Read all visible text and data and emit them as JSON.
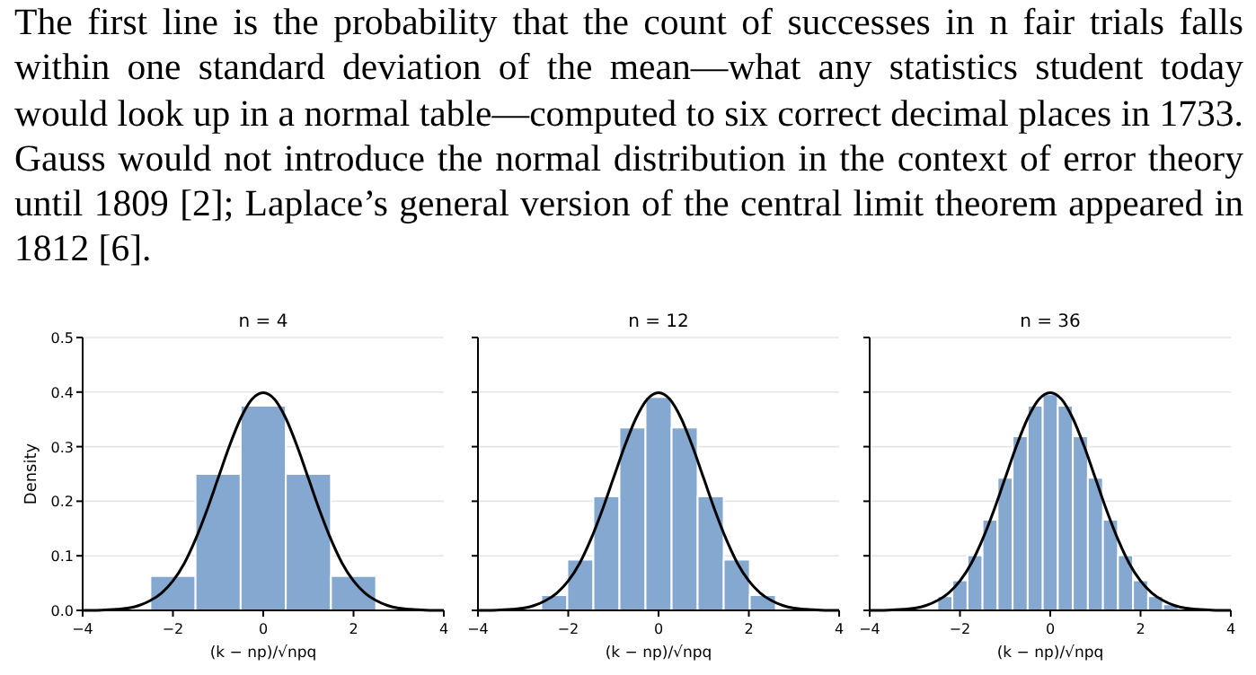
{
  "chart_data": [
    {
      "type": "histogram",
      "title": "n = 4",
      "xlabel": "(k − np)/√npq",
      "ylabel": "Density",
      "annotations": [
        "The first line is the probability that the count of successes in n fair trials falls within one standard deviation of the mean—what any statistics student today would look up in a normal table—computed to six correct decimal places in 1733. Gauss would not introduce the normal distribution in the context of error theory until 1809 [2]; Laplace’s general version of the central limit theorem appeared in 1812 [6]."
      ],
      "bins": [
        -2.5,
        -1.5,
        -0.5,
        0.5,
        1.5,
        2.5
      ],
      "values": [
        0.063,
        0.25,
        0.375,
        0.25,
        0.063
      ],
      "color": "#84a8cf",
      "series": [
        {
          "type": "line",
          "color": "#000000",
          "x": [
            -4,
            -3.75,
            -3.5,
            -3.25,
            -3,
            -2.75,
            -2.5,
            -2.25,
            -2,
            -1.75,
            -1.5,
            -1.25,
            -1,
            -0.75,
            -0.5,
            -0.25,
            0,
            0.25,
            0.5,
            0.75,
            1,
            1.25,
            1.5,
            1.75,
            2,
            2.25,
            2.5,
            2.75,
            3,
            3.25,
            3.5,
            3.75,
            4
          ],
          "values": [
            0,
            0,
            0.001,
            0.002,
            0.004,
            0.009,
            0.018,
            0.032,
            0.054,
            0.086,
            0.13,
            0.183,
            0.242,
            0.301,
            0.352,
            0.387,
            0.399,
            0.387,
            0.352,
            0.301,
            0.242,
            0.183,
            0.13,
            0.086,
            0.054,
            0.032,
            0.018,
            0.009,
            0.004,
            0.002,
            0.001,
            0,
            0
          ]
        }
      ],
      "xlim": [
        -4,
        4
      ],
      "xticks": [
        -4,
        -2,
        0,
        2,
        4
      ],
      "ylim": [
        0,
        0.5
      ],
      "yticks": [
        {
          "value": 0,
          "label": "0.0"
        },
        0.1,
        0.2,
        0.3,
        0.4,
        0.5
      ],
      "grid": "y"
    },
    {
      "type": "histogram",
      "title": "n = 12",
      "xlabel": "(k − np)/√npq",
      "bins": [
        -2.598,
        -2.021,
        -1.443,
        -0.866,
        -0.289,
        0.289,
        0.866,
        1.443,
        2.021,
        2.598
      ],
      "values": [
        0.028,
        0.093,
        0.209,
        0.335,
        0.391,
        0.335,
        0.209,
        0.093,
        0.028
      ],
      "color": "#84a8cf",
      "series": [
        {
          "type": "line",
          "color": "#000000",
          "x": [
            -4,
            -3.75,
            -3.5,
            -3.25,
            -3,
            -2.75,
            -2.5,
            -2.25,
            -2,
            -1.75,
            -1.5,
            -1.25,
            -1,
            -0.75,
            -0.5,
            -0.25,
            0,
            0.25,
            0.5,
            0.75,
            1,
            1.25,
            1.5,
            1.75,
            2,
            2.25,
            2.5,
            2.75,
            3,
            3.25,
            3.5,
            3.75,
            4
          ],
          "values": [
            0,
            0,
            0.001,
            0.002,
            0.004,
            0.009,
            0.018,
            0.032,
            0.054,
            0.086,
            0.13,
            0.183,
            0.242,
            0.301,
            0.352,
            0.387,
            0.399,
            0.387,
            0.352,
            0.301,
            0.242,
            0.183,
            0.13,
            0.086,
            0.054,
            0.032,
            0.018,
            0.009,
            0.004,
            0.002,
            0.001,
            0,
            0
          ]
        }
      ],
      "xlim": [
        -4,
        4
      ],
      "xticks": [
        -4,
        -2,
        0,
        2,
        4
      ],
      "ylim": [
        0,
        0.5
      ],
      "yticks": [
        0,
        0.1,
        0.2,
        0.3,
        0.4,
        0.5
      ],
      "tick_labels": "x",
      "grid": "y"
    },
    {
      "type": "histogram",
      "title": "n = 36",
      "xlabel": "(k − np)/√npq",
      "bins": [
        -2.5,
        -2.167,
        -1.833,
        -1.5,
        -1.167,
        -0.833,
        -0.5,
        -0.167,
        0.167,
        0.5,
        0.833,
        1.167,
        1.5,
        1.833,
        2.167,
        2.5,
        2.833
      ],
      "values": [
        0.026,
        0.055,
        0.101,
        0.166,
        0.243,
        0.319,
        0.375,
        0.396,
        0.375,
        0.319,
        0.243,
        0.166,
        0.101,
        0.055,
        0.026,
        0.011
      ],
      "color": "#84a8cf",
      "series": [
        {
          "type": "line",
          "color": "#000000",
          "x": [
            -4,
            -3.75,
            -3.5,
            -3.25,
            -3,
            -2.75,
            -2.5,
            -2.25,
            -2,
            -1.75,
            -1.5,
            -1.25,
            -1,
            -0.75,
            -0.5,
            -0.25,
            0,
            0.25,
            0.5,
            0.75,
            1,
            1.25,
            1.5,
            1.75,
            2,
            2.25,
            2.5,
            2.75,
            3,
            3.25,
            3.5,
            3.75,
            4
          ],
          "values": [
            0,
            0,
            0.001,
            0.002,
            0.004,
            0.009,
            0.018,
            0.032,
            0.054,
            0.086,
            0.13,
            0.183,
            0.242,
            0.301,
            0.352,
            0.387,
            0.399,
            0.387,
            0.352,
            0.301,
            0.242,
            0.183,
            0.13,
            0.086,
            0.054,
            0.032,
            0.018,
            0.009,
            0.004,
            0.002,
            0.001,
            0,
            0
          ]
        }
      ],
      "xlim": [
        -4,
        4
      ],
      "xticks": [
        -4,
        -2,
        0,
        2,
        4
      ],
      "ylim": [
        0,
        0.5
      ],
      "yticks": [
        0,
        0.1,
        0.2,
        0.3,
        0.4,
        0.5
      ],
      "tick_labels": "x",
      "grid": "y"
    }
  ]
}
